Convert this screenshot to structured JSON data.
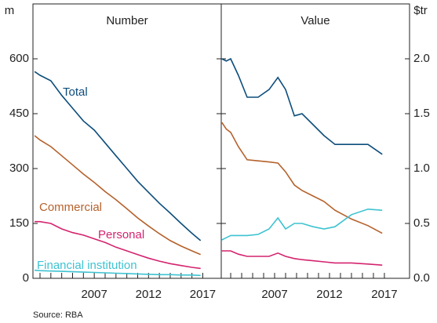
{
  "chart_data": [
    {
      "type": "line",
      "title": "Number",
      "y_unit": "m",
      "x": [
        2001.5,
        2002,
        2003,
        2004,
        2005,
        2006,
        2007,
        2008,
        2009,
        2010,
        2011,
        2012,
        2013,
        2014,
        2015,
        2016,
        2016.8
      ],
      "series": [
        {
          "name": "Total",
          "color": "#0d4d7c",
          "values": [
            565,
            555,
            540,
            500,
            465,
            430,
            405,
            370,
            335,
            300,
            265,
            235,
            205,
            178,
            150,
            123,
            103
          ]
        },
        {
          "name": "Commercial",
          "color": "#b5612b",
          "values": [
            390,
            378,
            360,
            335,
            310,
            285,
            262,
            237,
            215,
            190,
            165,
            143,
            122,
            103,
            88,
            75,
            65
          ]
        },
        {
          "name": "Personal",
          "color": "#d4236f",
          "values": [
            155,
            155,
            150,
            135,
            125,
            118,
            108,
            98,
            85,
            75,
            65,
            55,
            47,
            40,
            35,
            30,
            27
          ]
        },
        {
          "name": "Financial institution",
          "color": "#3ec3d1",
          "values": [
            22,
            21,
            20,
            19,
            18,
            17,
            16,
            15,
            14,
            13,
            12,
            11,
            10,
            10,
            9,
            9,
            8
          ]
        }
      ],
      "xlim": [
        2001.35,
        2018.7
      ],
      "xticks": [
        2007,
        2012,
        2017
      ],
      "xminor_ticks": [
        2002,
        2003,
        2004,
        2005,
        2006,
        2008,
        2009,
        2010,
        2011,
        2013,
        2014,
        2015,
        2016
      ],
      "ylim": [
        0,
        750
      ],
      "yticks": [
        0,
        150,
        300,
        450,
        600
      ],
      "grid": false
    },
    {
      "type": "line",
      "title": "Value",
      "y_unit": "$tr",
      "x": [
        2002.2,
        2002.6,
        2003,
        2003.7,
        2004.5,
        2005.5,
        2006.5,
        2007.3,
        2008,
        2008.8,
        2009.5,
        2010.5,
        2011.5,
        2012.5,
        2014,
        2015.5,
        2016.8
      ],
      "series": [
        {
          "color": "#0d4d7c",
          "values": [
            2.0,
            1.98,
            2.0,
            1.85,
            1.65,
            1.65,
            1.72,
            1.83,
            1.72,
            1.48,
            1.5,
            1.4,
            1.3,
            1.22,
            1.22,
            1.22,
            1.13
          ]
        },
        {
          "color": "#b5612b",
          "values": [
            1.42,
            1.36,
            1.33,
            1.2,
            1.08,
            1.07,
            1.06,
            1.05,
            0.97,
            0.85,
            0.8,
            0.75,
            0.7,
            0.62,
            0.54,
            0.48,
            0.41
          ]
        },
        {
          "color": "#d4236f",
          "values": [
            0.25,
            0.25,
            0.25,
            0.22,
            0.2,
            0.2,
            0.2,
            0.23,
            0.2,
            0.18,
            0.17,
            0.16,
            0.15,
            0.14,
            0.14,
            0.13,
            0.12
          ]
        },
        {
          "color": "#3ec3d1",
          "values": [
            0.35,
            0.37,
            0.39,
            0.39,
            0.39,
            0.4,
            0.45,
            0.55,
            0.45,
            0.5,
            0.5,
            0.47,
            0.45,
            0.47,
            0.58,
            0.63,
            0.62
          ]
        }
      ],
      "xlim": [
        2002.14,
        2019.29
      ],
      "xticks": [
        2007,
        2012,
        2017
      ],
      "xminor_ticks": [
        2003,
        2004,
        2005,
        2006,
        2008,
        2009,
        2010,
        2011,
        2013,
        2014,
        2015,
        2016
      ],
      "ylim": [
        0,
        2.5
      ],
      "yticks": [
        {
          "value": 0,
          "label": "0.0"
        },
        0.5,
        {
          "value": 1,
          "label": "1.0"
        },
        1.5,
        {
          "value": 2,
          "label": "2.0"
        }
      ],
      "grid": false
    }
  ],
  "source": "Source:   RBA"
}
